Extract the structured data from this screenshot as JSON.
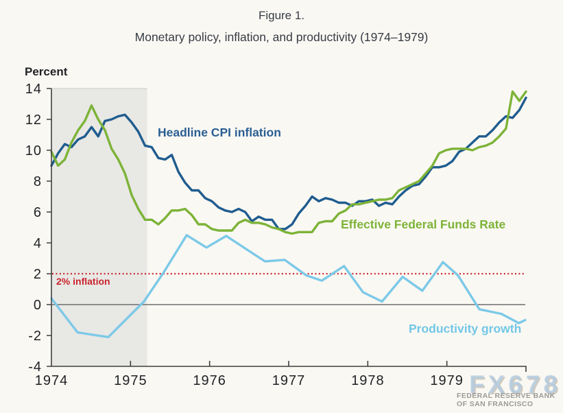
{
  "header": {
    "figure_label": "Figure 1.",
    "title": "Monetary policy, inflation, and productivity (1974–1979)"
  },
  "axis": {
    "unit_label": "Percent"
  },
  "annotations": {
    "cpi_label": "Headline CPI inflation",
    "ffr_label": "Effective Federal Funds Rate",
    "productivity_label": "Productivity growth",
    "target_label": "2% inflation"
  },
  "watermark": {
    "brand": "FX678",
    "org_line1": "FEDERAL RESERVE BANK",
    "org_line2": "OF SAN FRANCISCO"
  },
  "colors": {
    "background": "#FAF8F3",
    "cpi": "#1F5C8F",
    "ffr": "#7DB338",
    "productivity": "#7CC9E8",
    "target_red": "#C9242C",
    "recession_fill": "#E8E8E5",
    "recession_cap": "#C9C9C5",
    "zero_line": "#6E6E6E",
    "axis": "#3E3E3E",
    "text_dark": "#363C44"
  },
  "chart_data": {
    "type": "line",
    "title": "Monetary policy, inflation, and productivity (1974–1979)",
    "xlabel": "",
    "ylabel": "Percent",
    "xlim": [
      1974,
      1980
    ],
    "ylim": [
      -4,
      14
    ],
    "x_ticks": [
      1974,
      1975,
      1976,
      1977,
      1978,
      1979
    ],
    "y_ticks": [
      -4,
      -2,
      0,
      2,
      4,
      6,
      8,
      10,
      12,
      14
    ],
    "grid": false,
    "legend_position": "inline-labels",
    "recession_band": {
      "from": 1974.0,
      "to": 1975.21
    },
    "reference_line": {
      "value": 2,
      "label": "2% inflation",
      "style": "dotted",
      "color": "#C9242C"
    },
    "zero_line": true,
    "series": [
      {
        "name": "Headline CPI inflation",
        "color": "#1F5C8F",
        "frequency": "monthly",
        "start": "1974-01",
        "values": [
          9.0,
          9.8,
          10.4,
          10.2,
          10.7,
          10.9,
          11.5,
          10.9,
          11.9,
          12.0,
          12.2,
          12.3,
          11.8,
          11.2,
          10.3,
          10.2,
          9.5,
          9.4,
          9.7,
          8.6,
          7.9,
          7.4,
          7.4,
          6.9,
          6.7,
          6.3,
          6.1,
          6.0,
          6.2,
          6.0,
          5.4,
          5.7,
          5.5,
          5.5,
          4.9,
          4.9,
          5.2,
          5.9,
          6.4,
          7.0,
          6.7,
          6.9,
          6.8,
          6.6,
          6.6,
          6.4,
          6.7,
          6.7,
          6.8,
          6.4,
          6.6,
          6.5,
          7.0,
          7.4,
          7.7,
          7.8,
          8.3,
          8.9,
          8.9,
          9.0,
          9.3,
          9.9,
          10.1,
          10.5,
          10.9,
          10.9,
          11.3,
          11.8,
          12.2,
          12.1,
          12.6,
          13.4
        ]
      },
      {
        "name": "Effective Federal Funds Rate",
        "color": "#7DB338",
        "frequency": "monthly",
        "start": "1974-01",
        "values": [
          9.9,
          9.0,
          9.4,
          10.5,
          11.3,
          11.9,
          12.9,
          12.0,
          11.3,
          10.1,
          9.4,
          8.5,
          7.1,
          6.2,
          5.5,
          5.5,
          5.2,
          5.6,
          6.1,
          6.1,
          6.2,
          5.8,
          5.2,
          5.2,
          4.9,
          4.8,
          4.8,
          4.8,
          5.3,
          5.5,
          5.3,
          5.3,
          5.2,
          5.0,
          4.9,
          4.7,
          4.6,
          4.7,
          4.7,
          4.7,
          5.3,
          5.4,
          5.4,
          5.9,
          6.1,
          6.5,
          6.5,
          6.6,
          6.7,
          6.8,
          6.8,
          6.9,
          7.4,
          7.6,
          7.8,
          8.0,
          8.5,
          9.0,
          9.8,
          10.0,
          10.1,
          10.1,
          10.1,
          10.0,
          10.2,
          10.3,
          10.5,
          10.9,
          11.4,
          13.8,
          13.2,
          13.8
        ]
      },
      {
        "name": "Productivity growth",
        "color": "#7CC9E8",
        "frequency": "quarterly",
        "points": [
          [
            1974.0,
            0.4
          ],
          [
            1974.33,
            -1.8
          ],
          [
            1974.58,
            -2.0
          ],
          [
            1974.72,
            -2.1
          ],
          [
            1975.17,
            0.2
          ],
          [
            1975.42,
            2.1
          ],
          [
            1975.71,
            4.5
          ],
          [
            1975.96,
            3.7
          ],
          [
            1976.21,
            4.45
          ],
          [
            1976.7,
            2.8
          ],
          [
            1976.95,
            2.9
          ],
          [
            1977.22,
            1.9
          ],
          [
            1977.42,
            1.55
          ],
          [
            1977.7,
            2.5
          ],
          [
            1977.94,
            0.8
          ],
          [
            1978.18,
            0.2
          ],
          [
            1978.44,
            1.8
          ],
          [
            1978.69,
            0.9
          ],
          [
            1978.95,
            2.75
          ],
          [
            1979.14,
            1.9
          ],
          [
            1979.41,
            -0.3
          ],
          [
            1979.69,
            -0.6
          ],
          [
            1979.91,
            -1.2
          ],
          [
            1979.99,
            -1.0
          ]
        ]
      }
    ]
  }
}
